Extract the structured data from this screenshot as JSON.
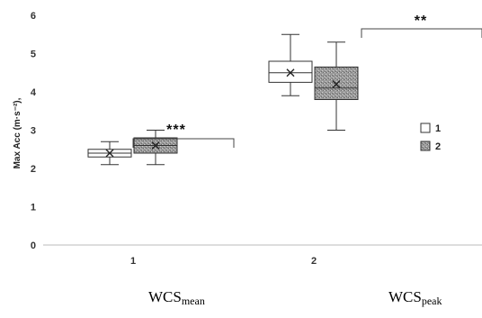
{
  "chart_data": {
    "type": "box",
    "ylabel": "Max Acc (m·s⁻²),",
    "ylim": [
      0,
      6
    ],
    "yticks": [
      "0",
      "1",
      "2",
      "3",
      "4",
      "5",
      "6"
    ],
    "categories": [
      "1",
      "2"
    ],
    "legend": [
      "1",
      "2"
    ],
    "legend_position": "right",
    "grid": false,
    "colors": {
      "series1": "#ffffff",
      "series2": "#9a9a9a",
      "stroke": "#333333"
    },
    "boxes": [
      {
        "category": "1",
        "series": "1",
        "min": 2.1,
        "q1": 2.3,
        "median": 2.4,
        "q3": 2.5,
        "max": 2.7,
        "mean": 2.4
      },
      {
        "category": "1",
        "series": "2",
        "min": 2.1,
        "q1": 2.4,
        "median": 2.6,
        "q3": 2.8,
        "max": 3.0,
        "mean": 2.6
      },
      {
        "category": "2",
        "series": "1",
        "min": 3.9,
        "q1": 4.25,
        "median": 4.5,
        "q3": 4.8,
        "max": 5.5,
        "mean": 4.5
      },
      {
        "category": "2",
        "series": "2",
        "min": 3.0,
        "q1": 3.8,
        "median": 4.1,
        "q3": 4.65,
        "max": 5.3,
        "mean": 4.2
      }
    ],
    "significance": [
      {
        "category": "1",
        "label": "***"
      },
      {
        "category": "2",
        "label": "**"
      }
    ]
  },
  "captions": [
    {
      "main": "WCS",
      "sub": "mean"
    },
    {
      "main": "WCS",
      "sub": "peak"
    }
  ]
}
